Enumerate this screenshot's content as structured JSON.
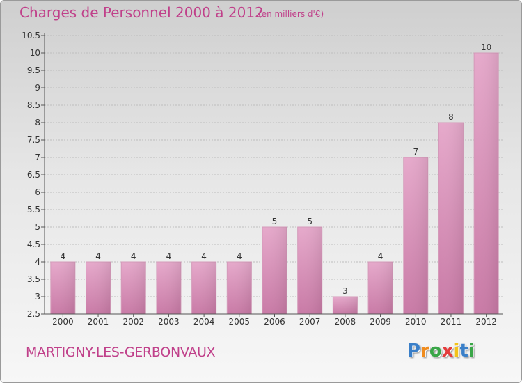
{
  "header": {
    "title": "Charges de Personnel 2000 à 2012",
    "unit": "(en milliers d'€)"
  },
  "footer": {
    "commune": "MARTIGNY-LES-GERBONVAUX",
    "logo_letters": [
      "P",
      "r",
      "o",
      "x",
      "i",
      "t",
      "i"
    ],
    "logo_colors": [
      "#3a7fc8",
      "#f08c1e",
      "#3aa648",
      "#e43c3c",
      "#f2c21a",
      "#3a7fc8",
      "#3aa648"
    ]
  },
  "colors": {
    "bar": "#c97aa6",
    "bar_light": "#e6a9cb",
    "grid": "#bdbdbd",
    "text": "#333333"
  },
  "chart_data": {
    "type": "bar",
    "categories": [
      "2000",
      "2001",
      "2002",
      "2003",
      "2004",
      "2005",
      "2006",
      "2007",
      "2008",
      "2009",
      "2010",
      "2011",
      "2012"
    ],
    "values": [
      4,
      4,
      4,
      4,
      4,
      4,
      5,
      5,
      3,
      4,
      7,
      8,
      10
    ],
    "data_labels": [
      "4",
      "4",
      "4",
      "4",
      "4",
      "4",
      "5",
      "5",
      "3",
      "4",
      "7",
      "8",
      "10"
    ],
    "yticks": [
      "2.5",
      "3",
      "3.5",
      "4",
      "4.5",
      "5",
      "5.5",
      "6",
      "6.5",
      "7",
      "7.5",
      "8",
      "8.5",
      "9",
      "9.5",
      "10",
      "10.5"
    ],
    "ylim": [
      2.5,
      10.5
    ],
    "grid": true
  }
}
